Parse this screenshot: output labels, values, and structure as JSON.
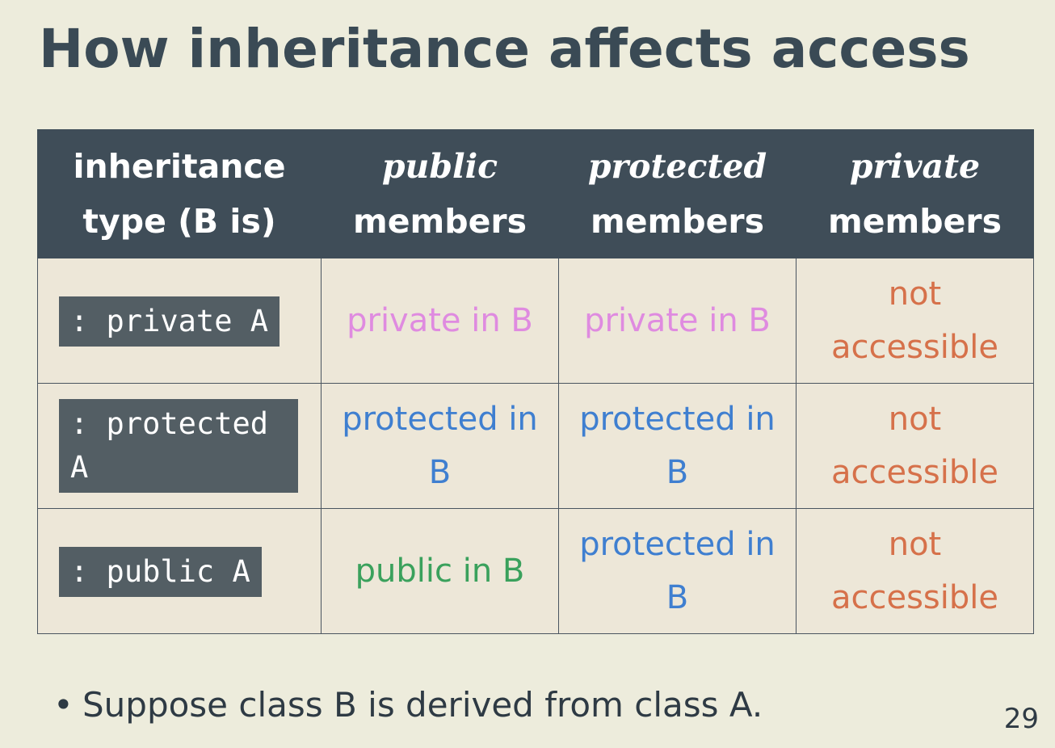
{
  "title": "How inheritance affects access",
  "table": {
    "headers": [
      {
        "line1": "inheritance",
        "line2": "type (B is)"
      },
      {
        "line1": "public",
        "line2": "members"
      },
      {
        "line1": "protected",
        "line2": "members"
      },
      {
        "line1": "private",
        "line2": "members"
      }
    ],
    "rows": [
      {
        "type": ": private A",
        "public": "private in B",
        "protected": "private in B",
        "private": "not accessible"
      },
      {
        "type": ": protected A",
        "public": "protected in B",
        "protected": "protected in B",
        "private": "not accessible"
      },
      {
        "type": ": public A",
        "public": "public in B",
        "protected": "protected in B",
        "private": "not accessible"
      }
    ]
  },
  "bullet": "Suppose class B is derived from class A.",
  "bullet_marker": "•",
  "page_number": "29",
  "colors": {
    "title": "#3a4a55",
    "header_bg": "#3f4d58",
    "private_text": "#df8be0",
    "protected_text": "#3f7fd0",
    "public_text": "#3aa15c",
    "not_accessible_text": "#d6714a",
    "code_bg": "#535e64",
    "slide_bg": "#edecdc"
  }
}
